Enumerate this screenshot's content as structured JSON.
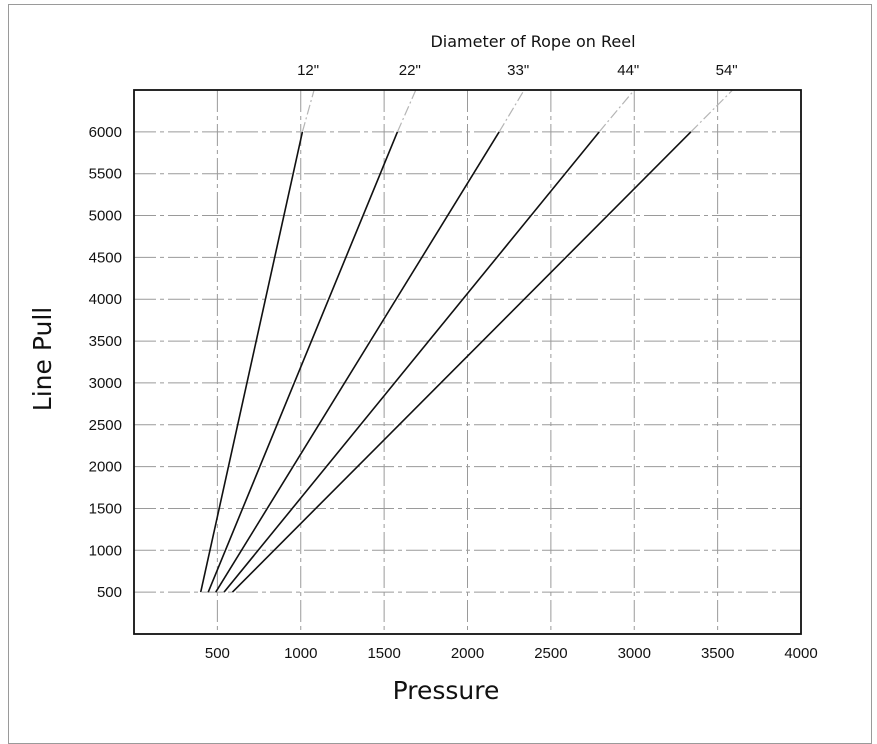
{
  "chart_data": {
    "type": "line",
    "title": "Diameter of Rope on Reel",
    "xlabel": "Pressure",
    "ylabel": "Line Pull",
    "xlim": [
      0,
      4000
    ],
    "ylim": [
      0,
      6500
    ],
    "x_ticks": [
      500,
      1000,
      1500,
      2000,
      2500,
      3000,
      3500,
      4000
    ],
    "y_ticks": [
      500,
      1000,
      1500,
      2000,
      2500,
      3000,
      3500,
      4000,
      4500,
      5000,
      5500,
      6000
    ],
    "grid": true,
    "line_color": "#111111",
    "extension_color": "#b5b5b5",
    "series": [
      {
        "name": "12\"",
        "points": [
          [
            400,
            500
          ],
          [
            1010,
            6000
          ]
        ],
        "extension": [
          [
            1010,
            6000
          ],
          [
            1080,
            6500
          ]
        ]
      },
      {
        "name": "22\"",
        "points": [
          [
            445,
            500
          ],
          [
            1580,
            6000
          ]
        ],
        "extension": [
          [
            1580,
            6000
          ],
          [
            1690,
            6500
          ]
        ]
      },
      {
        "name": "33\"",
        "points": [
          [
            490,
            500
          ],
          [
            2190,
            6000
          ]
        ],
        "extension": [
          [
            2190,
            6000
          ],
          [
            2340,
            6500
          ]
        ]
      },
      {
        "name": "44\"",
        "points": [
          [
            540,
            500
          ],
          [
            2790,
            6000
          ]
        ],
        "extension": [
          [
            2790,
            6000
          ],
          [
            3000,
            6500
          ]
        ]
      },
      {
        "name": "54\"",
        "points": [
          [
            590,
            500
          ],
          [
            3340,
            6000
          ]
        ],
        "extension": [
          [
            3340,
            6000
          ],
          [
            3590,
            6500
          ]
        ]
      }
    ]
  }
}
